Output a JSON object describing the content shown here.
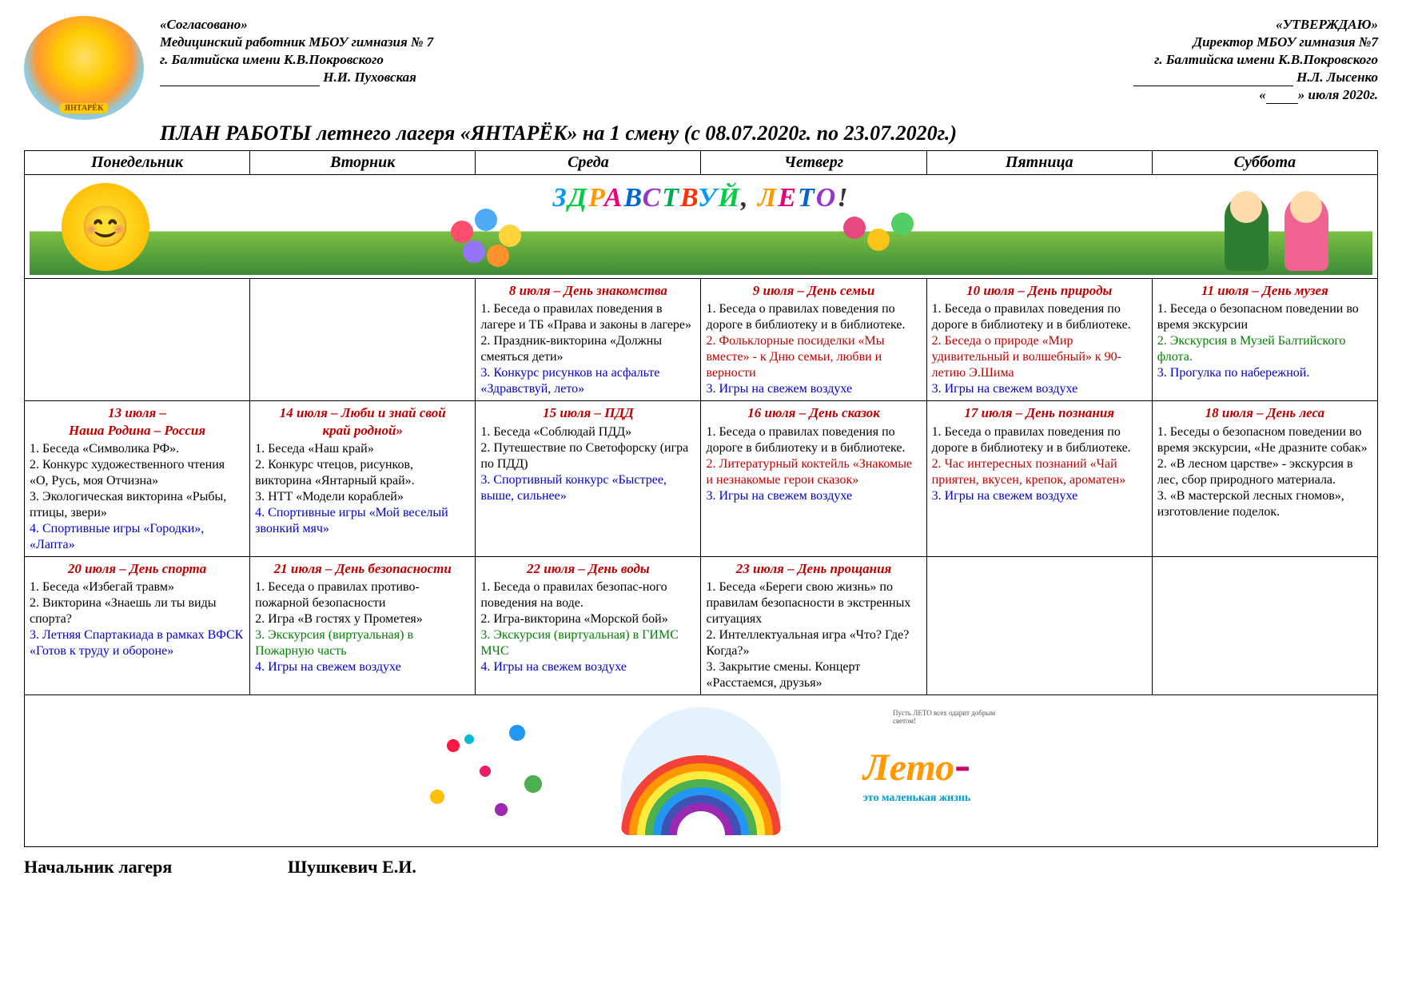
{
  "approval_left": {
    "line1": "«Согласовано»",
    "line2": "Медицинский работник МБОУ гимназия № 7",
    "line3": "г. Балтийска имени К.В.Покровского",
    "name": "Н.И. Пуховская"
  },
  "approval_right": {
    "line1": "«УТВЕРЖДАЮ»",
    "line2": "Директор МБОУ гимназия №7",
    "line3": "г. Балтийска имени К.В.Покровского",
    "name": "Н.Л. Лысенко",
    "date": "» июля 2020г."
  },
  "title": "ПЛАН РАБОТЫ  летнего лагеря «ЯНТАРЁК» на 1 смену  (с  08.07.2020г. по 23.07.2020г.)",
  "days": [
    "Понедельник",
    "Вторник",
    "Среда",
    "Четверг",
    "Пятница",
    "Суббота"
  ],
  "banner_text": "ЗДРАВСТВУЙ, ЛЕТО!",
  "banner_colors": [
    "#0099ff",
    "#00cc44",
    "#ff9900",
    "#e6007e",
    "#0066cc",
    "#9933cc",
    "#00aa55",
    "#ff3300"
  ],
  "leto_caption_small": "Пусть ЛЕТО всех одарит добрым светом!",
  "leto_main": "Лето",
  "leto_sub": "это маленькая жизнь",
  "leto_colors": {
    "main": "#ff9900",
    "sub": "#0099cc",
    "hyphen": "#cc0066"
  },
  "colors": {
    "title_red": "#c00000",
    "text_black": "#000000",
    "text_blue": "#0000cc",
    "text_green": "#008000",
    "border": "#000000"
  },
  "row1": [
    {
      "title": "8 июля – День знакомства",
      "items": [
        {
          "t": "1. Беседа о правилах поведения в лагере и ТБ «Права и законы в лагере»",
          "c": "c-black"
        },
        {
          "t": "2. Праздник-викторина «Должны смеяться дети»",
          "c": "c-black"
        },
        {
          "t": "3. Конкурс рисунков на асфальте «Здравствуй, лето»",
          "c": "c-blue"
        }
      ]
    },
    {
      "title": "9 июля – День семьи",
      "items": [
        {
          "t": "1. Беседа о правилах поведения по дороге в библиотеку и в библиотеке.",
          "c": "c-black"
        },
        {
          "t": "2. Фольклорные посиделки «Мы вместе» - к Дню семьи, любви и верности",
          "c": "c-red"
        },
        {
          "t": "3. Игры на свежем воздухе",
          "c": "c-blue"
        }
      ]
    },
    {
      "title": "10 июля – День природы",
      "items": [
        {
          "t": "1. Беседа о правилах поведения по дороге в библиотеку и в библиотеке.",
          "c": "c-black"
        },
        {
          "t": "2. Беседа о природе «Мир удивительный и волшебный» к 90-летию Э.Шима",
          "c": "c-red"
        },
        {
          "t": "3. Игры на свежем воздухе",
          "c": "c-blue"
        }
      ]
    },
    {
      "title": "11 июля – День музея",
      "items": [
        {
          "t": "1. Беседа о безопасном поведении во время экскурсии",
          "c": "c-black"
        },
        {
          "t": "2. Экскурсия в Музей Балтийского флота.",
          "c": "c-green"
        },
        {
          "t": "3. Прогулка по набережной.",
          "c": "c-blue"
        }
      ]
    }
  ],
  "row2": [
    {
      "title_l1": "13 июля –",
      "title_l2": "Наша Родина – Россия",
      "items": [
        {
          "t": "1. Беседа «Символика РФ».",
          "c": "c-black"
        },
        {
          "t": "2. Конкурс художественного чтения «О, Русь, моя Отчизна»",
          "c": "c-black"
        },
        {
          "t": "3. Экологическая викторина «Рыбы, птицы, звери»",
          "c": "c-black"
        },
        {
          "t": "4. Спортивные игры «Городки», «Лапта»",
          "c": "c-blue"
        }
      ]
    },
    {
      "title_l1": "14 июля – Люби и знай свой",
      "title_l2": "край родной»",
      "items": [
        {
          "t": "1. Беседа «Наш край»",
          "c": "c-black"
        },
        {
          "t": "2. Конкурс чтецов, рисунков, викторина «Янтарный край».",
          "c": "c-black"
        },
        {
          "t": "3. НТТ «Модели кораблей»",
          "c": "c-black"
        },
        {
          "t": "4. Спортивные игры «Мой веселый звонкий мяч»",
          "c": "c-blue"
        }
      ]
    },
    {
      "title": "15 июля – ПДД",
      "items": [
        {
          "t": "1. Беседа «Соблюдай ПДД»",
          "c": "c-black"
        },
        {
          "t": "2. Путешествие по Светофорску (игра по ПДД)",
          "c": "c-black"
        },
        {
          "t": "3. Спортивный конкурс «Быстрее, выше, сильнее»",
          "c": "c-blue"
        }
      ]
    },
    {
      "title": "16 июля – День сказок",
      "items": [
        {
          "t": "1. Беседа о правилах поведения по дороге в библиотеку и в библиотеке.",
          "c": "c-black"
        },
        {
          "t": "2. Литературный коктейль «Знакомые и незнакомые герои сказок»",
          "c": "c-red"
        },
        {
          "t": "3. Игры на свежем воздухе",
          "c": "c-blue"
        }
      ]
    },
    {
      "title": "17 июля – День познания",
      "items": [
        {
          "t": "1. Беседа о правилах поведения по дороге в библиотеку и в библиотеке.",
          "c": "c-black"
        },
        {
          "t": "2. Час интересных познаний «Чай приятен, вкусен, крепок, ароматен»",
          "c": "c-red"
        },
        {
          "t": "3. Игры на свежем воздухе",
          "c": "c-blue"
        }
      ]
    },
    {
      "title": "18 июля –  День леса",
      "items": [
        {
          "t": "1. Беседы о безопасном поведении во время экскурсии, «Не дразните собак»",
          "c": "c-black"
        },
        {
          "t": "2. «В лесном царстве» - экскурсия в лес, сбор природного материала.",
          "c": "c-black"
        },
        {
          "t": "3. «В мастерской лесных гномов», изготовление поделок.",
          "c": "c-black"
        }
      ]
    }
  ],
  "row3": [
    {
      "title": "20 июля – День спорта",
      "items": [
        {
          "t": "1. Беседа «Избегай травм»",
          "c": "c-black"
        },
        {
          "t": "2. Викторина «Знаешь ли ты виды спорта?",
          "c": "c-black"
        },
        {
          "t": "3. Летняя Спартакиада в рамках ВФСК «Готов к труду и обороне»",
          "c": "c-blue"
        }
      ]
    },
    {
      "title": "21 июля – День безопасности",
      "items": [
        {
          "t": "1. Беседа о правилах противо-пожарной безопасности",
          "c": "c-black"
        },
        {
          "t": "2. Игра «В гостях у Прометея»",
          "c": "c-black"
        },
        {
          "t": "3. Экскурсия (виртуальная) в Пожарную часть",
          "c": "c-green"
        },
        {
          "t": "4. Игры на свежем воздухе",
          "c": "c-blue"
        }
      ]
    },
    {
      "title": "22 июля – День воды",
      "items": [
        {
          "t": "1. Беседа о правилах безопас-ного поведения на воде.",
          "c": "c-black"
        },
        {
          "t": "2. Игра-викторина «Морской бой»",
          "c": "c-black"
        },
        {
          "t": "3. Экскурсия (виртуальная) в ГИМС МЧС",
          "c": "c-green"
        },
        {
          "t": "4. Игры на свежем воздухе",
          "c": "c-blue"
        }
      ]
    },
    {
      "title": "23 июля – День прощания",
      "items": [
        {
          "t": "1. Беседа «Береги свою жизнь» по правилам безопасности в экстренных ситуациях",
          "c": "c-black"
        },
        {
          "t": "2. Интеллектуальная игра «Что? Где? Когда?»",
          "c": "c-black"
        },
        {
          "t": "3. Закрытие смены. Концерт «Расстаемся, друзья»",
          "c": "c-black"
        }
      ]
    }
  ],
  "signatures": {
    "left_role": "Начальник лагеря",
    "left_name": "Шушкевич Е.И."
  }
}
